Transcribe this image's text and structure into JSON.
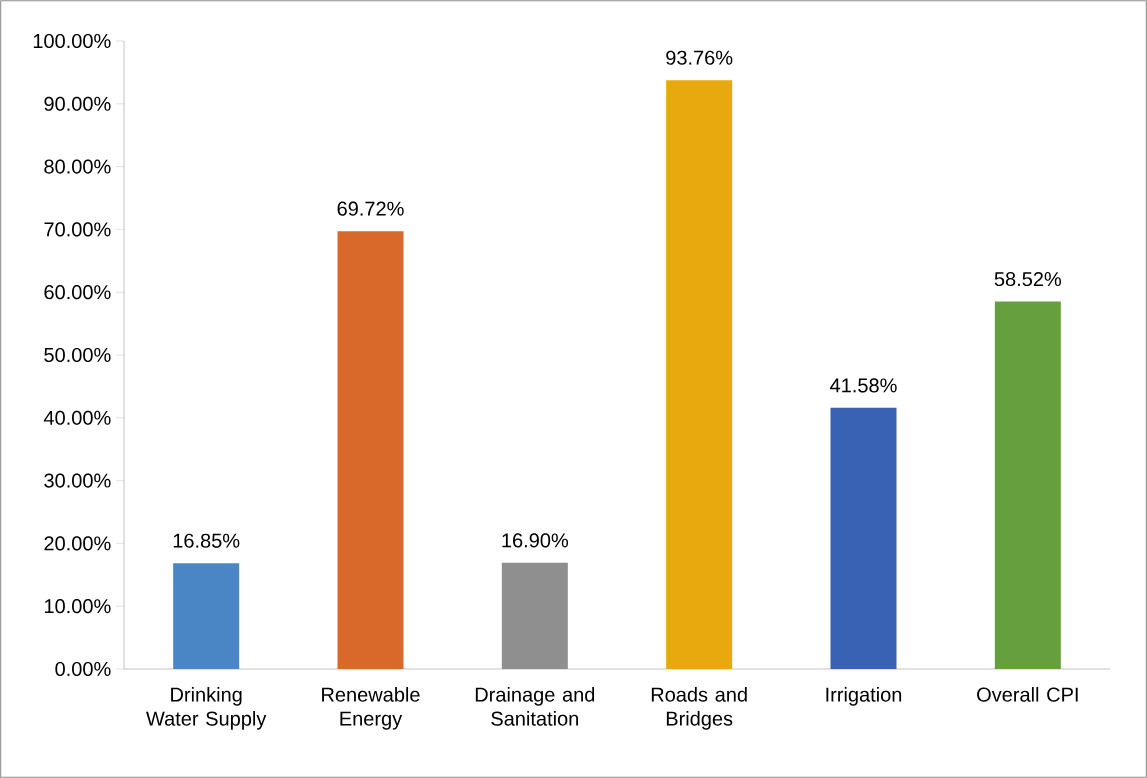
{
  "chart_data": {
    "type": "bar",
    "categories": [
      "Drinking Water Supply",
      "Renewable Energy",
      "Drainage and Sanitation",
      "Roads and Bridges",
      "Irrigation",
      "Overall CPI"
    ],
    "values": [
      16.85,
      69.72,
      16.9,
      93.76,
      41.58,
      58.52
    ],
    "colors": [
      "#4a86c5",
      "#d9692a",
      "#8f8f8f",
      "#e8a90e",
      "#3a62b4",
      "#66a03e"
    ],
    "value_labels": [
      "16.85%",
      "69.72%",
      "16.90%",
      "93.76%",
      "41.58%",
      "58.52%"
    ],
    "ylim": [
      0,
      100
    ],
    "yticks": [
      {
        "value": 0,
        "label": "0.00%"
      },
      {
        "value": 10,
        "label": "10.00%"
      },
      {
        "value": 20,
        "label": "20.00%"
      },
      {
        "value": 30,
        "label": "30.00%"
      },
      {
        "value": 40,
        "label": "40.00%"
      },
      {
        "value": 50,
        "label": "50.00%"
      },
      {
        "value": 60,
        "label": "60.00%"
      },
      {
        "value": 70,
        "label": "70.00%"
      },
      {
        "value": 80,
        "label": "80.00%"
      },
      {
        "value": 90,
        "label": "90.00%"
      },
      {
        "value": 100,
        "label": "100.00%"
      }
    ],
    "grid": false
  }
}
